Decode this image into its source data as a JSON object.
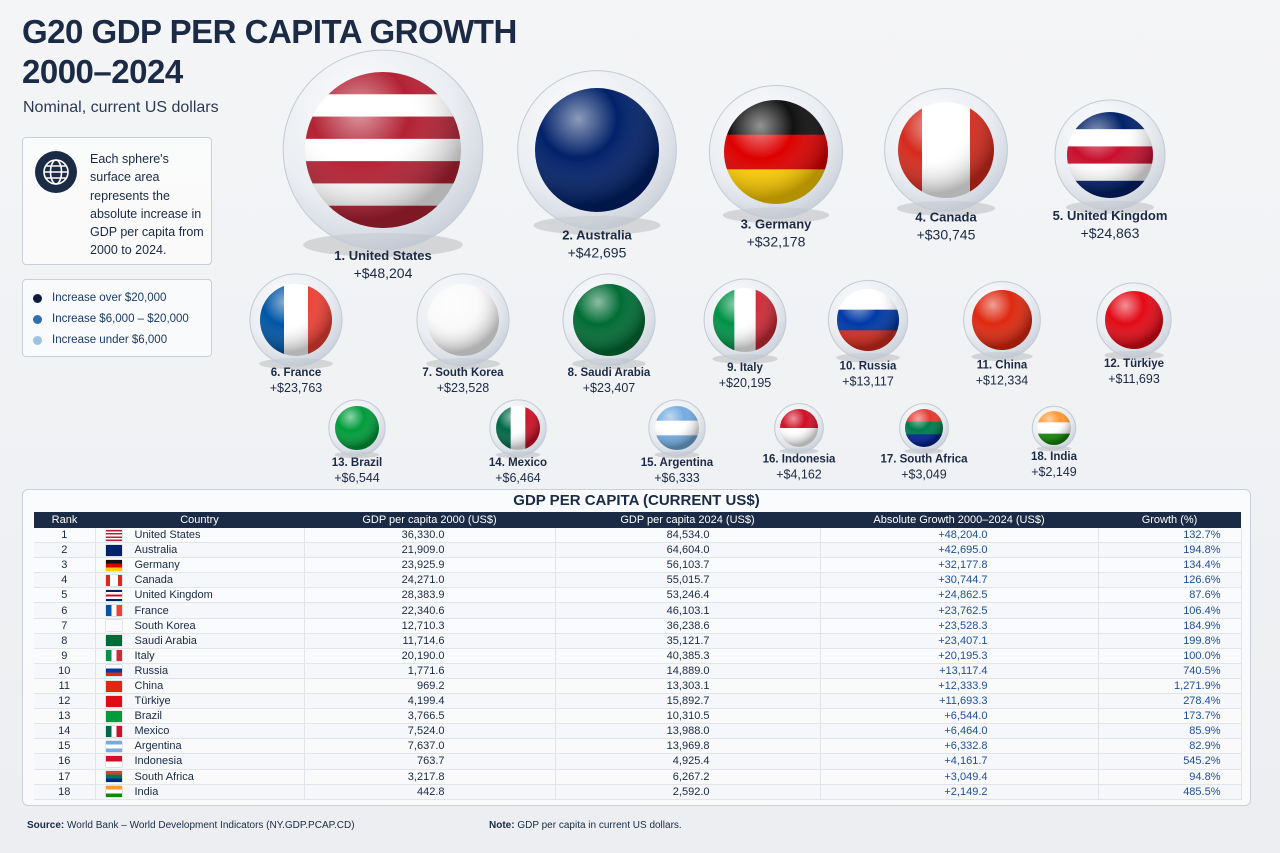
{
  "header": {
    "title_lines": [
      "G20 GDP PER CAPITA GROWTH",
      "2000–2024"
    ],
    "subtitle": "Nominal, current US dollars"
  },
  "info": "Each sphere's surface area represents the absolute increase in GDP per capita from 2000 to 2024.",
  "legend": [
    "Increase over $20,000",
    "Increase $6,000 – $20,000",
    "Increase under $6,000"
  ],
  "spheres": [
    {
      "label": "1. United States",
      "value": "+$48,204"
    },
    {
      "label": "2. Australia",
      "value": "+$42,695"
    },
    {
      "label": "3. Germany",
      "value": "+$32,178"
    },
    {
      "label": "4. Canada",
      "value": "+$30,745"
    },
    {
      "label": "5. United Kingdom",
      "value": "+$24,863"
    },
    {
      "label": "6. France",
      "value": "+$23,763"
    },
    {
      "label": "7. South Korea",
      "value": "+$23,528"
    },
    {
      "label": "8. Saudi Arabia",
      "value": "+$23,407"
    },
    {
      "label": "9. Italy",
      "value": "+$20,195"
    },
    {
      "label": "10. Russia",
      "value": "+$13,117"
    },
    {
      "label": "11. China",
      "value": "+$12,334"
    },
    {
      "label": "12. Türkiye",
      "value": "+$11,693"
    },
    {
      "label": "13. Brazil",
      "value": "+$6,544"
    },
    {
      "label": "14. Mexico",
      "value": "+$6,464"
    },
    {
      "label": "15. Argentina",
      "value": "+$6,333"
    },
    {
      "label": "16. Indonesia",
      "value": "+$4,162"
    },
    {
      "label": "17. South Africa",
      "value": "+$3,049"
    },
    {
      "label": "18. India",
      "value": "+$2,149"
    }
  ],
  "table": {
    "title": "GDP PER CAPITA (CURRENT US$)",
    "columns": [
      "Rank",
      "Country",
      "GDP per capita 2000 (US$)",
      "GDP per capita 2024 (US$)",
      "Absolute Growth 2000–2024 (US$)",
      "Growth (%)"
    ],
    "rows": [
      [
        "1",
        "United States",
        "36,330.0",
        "84,534.0",
        "+48,204.0",
        "132.7%"
      ],
      [
        "2",
        "Australia",
        "21,909.0",
        "64,604.0",
        "+42,695.0",
        "194.8%"
      ],
      [
        "3",
        "Germany",
        "23,925.9",
        "56,103.7",
        "+32,177.8",
        "134.4%"
      ],
      [
        "4",
        "Canada",
        "24,271.0",
        "55,015.7",
        "+30,744.7",
        "126.6%"
      ],
      [
        "5",
        "United Kingdom",
        "28,383.9",
        "53,246.4",
        "+24,862.5",
        "87.6%"
      ],
      [
        "6",
        "France",
        "22,340.6",
        "46,103.1",
        "+23,762.5",
        "106.4%"
      ],
      [
        "7",
        "South Korea",
        "12,710.3",
        "36,238.6",
        "+23,528.3",
        "184.9%"
      ],
      [
        "8",
        "Saudi Arabia",
        "11,714.6",
        "35,121.7",
        "+23,407.1",
        "199.8%"
      ],
      [
        "9",
        "Italy",
        "20,190.0",
        "40,385.3",
        "+20,195.3",
        "100.0%"
      ],
      [
        "10",
        "Russia",
        "1,771.6",
        "14,889.0",
        "+13,117.4",
        "740.5%"
      ],
      [
        "11",
        "China",
        "969.2",
        "13,303.1",
        "+12,333.9",
        "1,271.9%"
      ],
      [
        "12",
        "Türkiye",
        "4,199.4",
        "15,892.7",
        "+11,693.3",
        "278.4%"
      ],
      [
        "13",
        "Brazil",
        "3,766.5",
        "10,310.5",
        "+6,544.0",
        "173.7%"
      ],
      [
        "14",
        "Mexico",
        "7,524.0",
        "13,988.0",
        "+6,464.0",
        "85.9%"
      ],
      [
        "15",
        "Argentina",
        "7,637.0",
        "13,969.8",
        "+6,332.8",
        "82.9%"
      ],
      [
        "16",
        "Indonesia",
        "763.7",
        "4,925.4",
        "+4,161.7",
        "545.2%"
      ],
      [
        "17",
        "South Africa",
        "3,217.8",
        "6,267.2",
        "+3,049.4",
        "94.8%"
      ],
      [
        "18",
        "India",
        "442.8",
        "2,592.0",
        "+2,149.2",
        "485.5%"
      ]
    ]
  },
  "footer": {
    "source_label": "Source:",
    "source": "World Bank – World Development Indicators (NY.GDP.PCAP.CD)",
    "note_label": "Note:",
    "note": "GDP per capita in current US dollars."
  }
}
